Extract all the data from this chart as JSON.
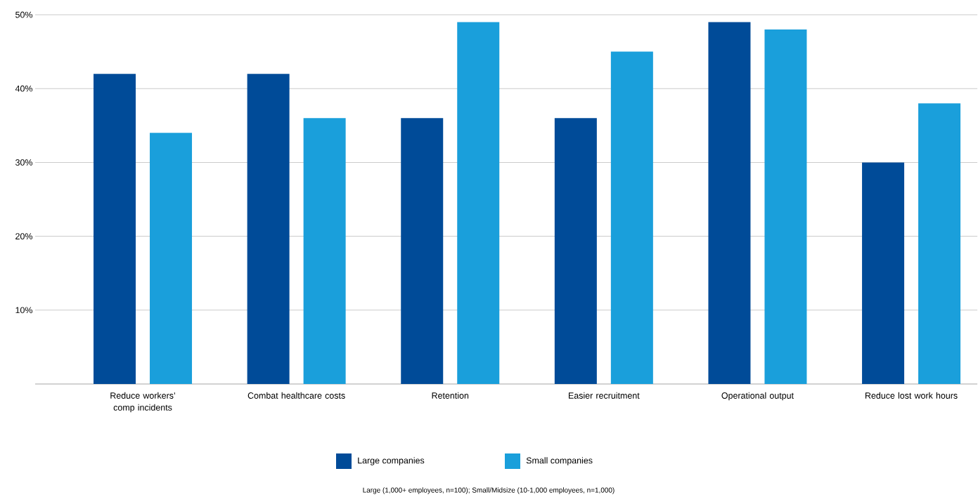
{
  "chart_data": {
    "type": "bar",
    "categories": [
      "Reduce workers’ comp incidents",
      "Combat healthcare costs",
      "Retention",
      "Easier recruitment",
      "Operational output",
      "Reduce lost work hours"
    ],
    "series": [
      {
        "name": "Large companies",
        "color": "#004b98",
        "values": [
          42,
          42,
          36,
          36,
          49,
          30
        ]
      },
      {
        "name": "Small companies",
        "color": "#1a9fdb",
        "values": [
          34,
          36,
          49,
          45,
          48,
          38
        ]
      }
    ],
    "ylim": [
      0,
      50
    ],
    "yticks": [
      {
        "value": 10,
        "label": "10%"
      },
      {
        "value": 20,
        "label": "20%"
      },
      {
        "value": 30,
        "label": "30%"
      },
      {
        "value": 40,
        "label": "40%"
      },
      {
        "value": 50,
        "label": "50%"
      }
    ],
    "grid": "y",
    "legend": "bottom",
    "annotations": [
      "Large (1,000+ employees, n=100); Small/Midsize (10-1,000 employees, n=1,000)"
    ]
  }
}
